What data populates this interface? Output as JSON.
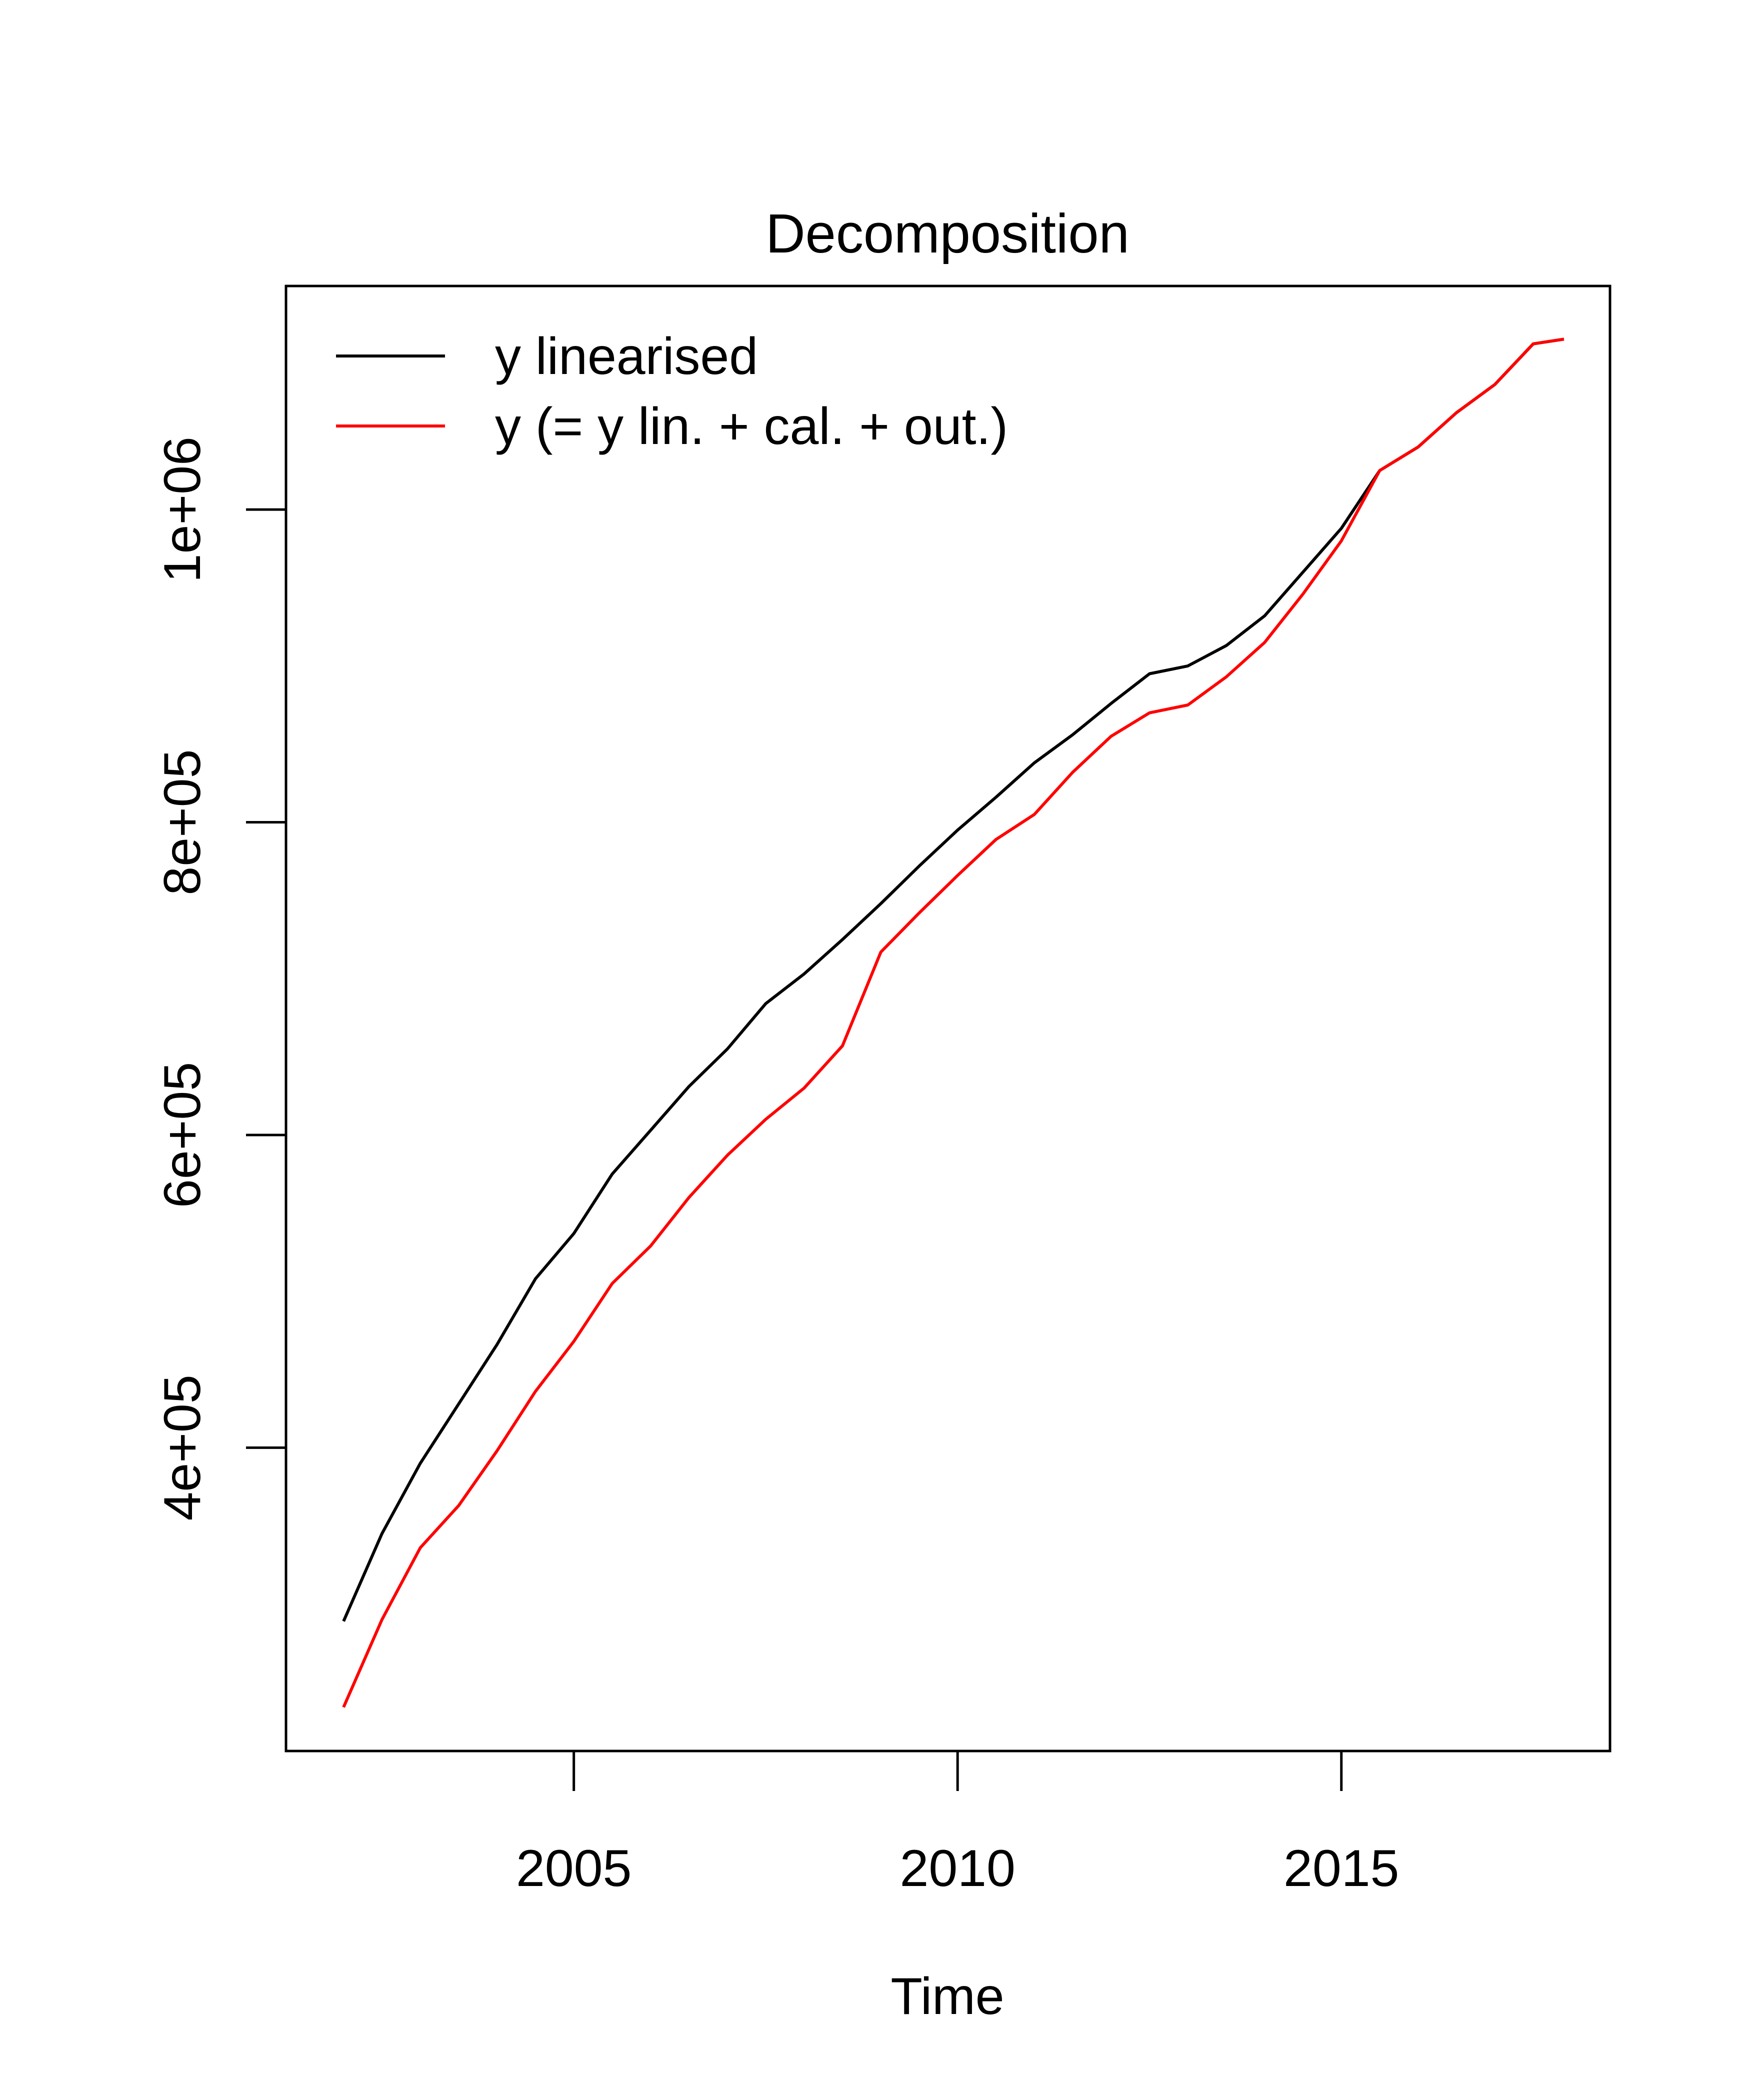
{
  "chart_data": {
    "type": "line",
    "title": "Decomposition",
    "xlabel": "Time",
    "ylabel": "",
    "xlim": [
      2001.25,
      2018.5
    ],
    "ylim": [
      206000,
      1143000
    ],
    "x_ticks": [
      2005,
      2010,
      2015
    ],
    "x_tick_labels": [
      "2005",
      "2010",
      "2015"
    ],
    "y_ticks": [
      400000,
      600000,
      800000,
      1000000
    ],
    "y_tick_labels": [
      "4e+05",
      "6e+05",
      "8e+05",
      "1e+06"
    ],
    "legend": {
      "position": "top-left",
      "entries": [
        {
          "label": "y linearised",
          "color": "#000000"
        },
        {
          "label": "y (= y lin. + cal. + out.)",
          "color": "#ff0000"
        }
      ]
    },
    "x": [
      2002.0,
      2002.5,
      2003.0,
      2003.5,
      2004.0,
      2004.5,
      2005.0,
      2005.5,
      2006.0,
      2006.5,
      2007.0,
      2007.5,
      2008.0,
      2008.5,
      2009.0,
      2009.5,
      2010.0,
      2010.5,
      2011.0,
      2011.5,
      2012.0,
      2012.5,
      2013.0,
      2013.5,
      2014.0,
      2014.5,
      2015.0,
      2015.5,
      2016.0,
      2016.5,
      2017.0,
      2017.5,
      2017.9
    ],
    "series": [
      {
        "name": "y linearised",
        "color": "#000000",
        "values": [
          289000,
          345000,
          390000,
          428000,
          466000,
          508000,
          537000,
          575000,
          603000,
          631000,
          655000,
          684000,
          703000,
          725000,
          748000,
          772000,
          795000,
          816000,
          838000,
          856000,
          876000,
          895000,
          900000,
          913000,
          932000,
          960000,
          988000,
          1025000,
          1040000,
          1062000,
          1080000,
          1106000,
          1109000
        ]
      },
      {
        "name": "y (= y lin. + cal. + out.)",
        "color": "#ff0000",
        "values": [
          234000,
          290000,
          336000,
          363000,
          398000,
          436000,
          468000,
          505000,
          529000,
          560000,
          587000,
          610000,
          630000,
          657000,
          717000,
          742000,
          766000,
          789000,
          805000,
          832000,
          855000,
          870000,
          875000,
          893000,
          915000,
          946000,
          980000,
          1025000,
          1040000,
          1062000,
          1080000,
          1106000,
          1109000
        ]
      }
    ]
  }
}
